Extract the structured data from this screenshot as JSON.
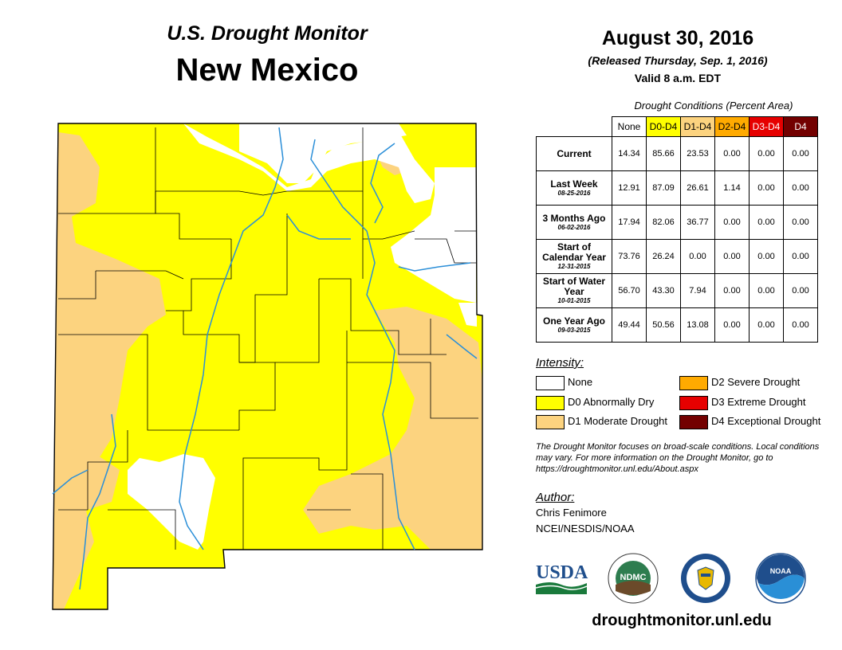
{
  "header": {
    "title": "U.S. Drought Monitor",
    "state": "New Mexico"
  },
  "date_block": {
    "date": "August 30, 2016",
    "released": "(Released Thursday, Sep. 1, 2016)",
    "valid": "Valid 8 a.m. EDT"
  },
  "conditions": {
    "title": "Drought Conditions (Percent Area)",
    "columns": [
      "None",
      "D0-D4",
      "D1-D4",
      "D2-D4",
      "D3-D4",
      "D4"
    ],
    "column_colors": [
      "#ffffff",
      "#ffff00",
      "#fcd37f",
      "#ffaa00",
      "#e60000",
      "#730000"
    ],
    "column_text_colors": [
      "#000000",
      "#000000",
      "#000000",
      "#000000",
      "#ffffff",
      "#ffffff"
    ],
    "rows": [
      {
        "label": "Current",
        "date": "",
        "values": [
          "14.34",
          "85.66",
          "23.53",
          "0.00",
          "0.00",
          "0.00"
        ]
      },
      {
        "label": "Last Week",
        "date": "08-25-2016",
        "values": [
          "12.91",
          "87.09",
          "26.61",
          "1.14",
          "0.00",
          "0.00"
        ]
      },
      {
        "label": "3 Months Ago",
        "date": "06-02-2016",
        "values": [
          "17.94",
          "82.06",
          "36.77",
          "0.00",
          "0.00",
          "0.00"
        ]
      },
      {
        "label": "Start of Calendar Year",
        "date": "12-31-2015",
        "values": [
          "73.76",
          "26.24",
          "0.00",
          "0.00",
          "0.00",
          "0.00"
        ]
      },
      {
        "label": "Start of Water Year",
        "date": "10-01-2015",
        "values": [
          "56.70",
          "43.30",
          "7.94",
          "0.00",
          "0.00",
          "0.00"
        ]
      },
      {
        "label": "One Year Ago",
        "date": "09-03-2015",
        "values": [
          "49.44",
          "50.56",
          "13.08",
          "0.00",
          "0.00",
          "0.00"
        ]
      }
    ]
  },
  "legend": {
    "title": "Intensity:",
    "items": [
      {
        "label": "None",
        "color": "#ffffff"
      },
      {
        "label": "D0 Abnormally Dry",
        "color": "#ffff00"
      },
      {
        "label": "D1 Moderate Drought",
        "color": "#fcd37f"
      },
      {
        "label": "D2 Severe Drought",
        "color": "#ffaa00"
      },
      {
        "label": "D3 Extreme Drought",
        "color": "#e60000"
      },
      {
        "label": "D4 Exceptional Drought",
        "color": "#730000"
      }
    ]
  },
  "note": "The Drought Monitor focuses on broad-scale conditions. Local conditions may vary. For more information on the Drought Monitor, go to https://droughtmonitor.unl.edu/About.aspx",
  "author": {
    "title": "Author:",
    "name": "Chris Fenimore",
    "org": "NCEI/NESDIS/NOAA"
  },
  "logos": {
    "usda": "USDA",
    "ndmc": "NDMC",
    "noaa": "NOAA"
  },
  "footer": {
    "url": "droughtmonitor.unl.edu"
  }
}
